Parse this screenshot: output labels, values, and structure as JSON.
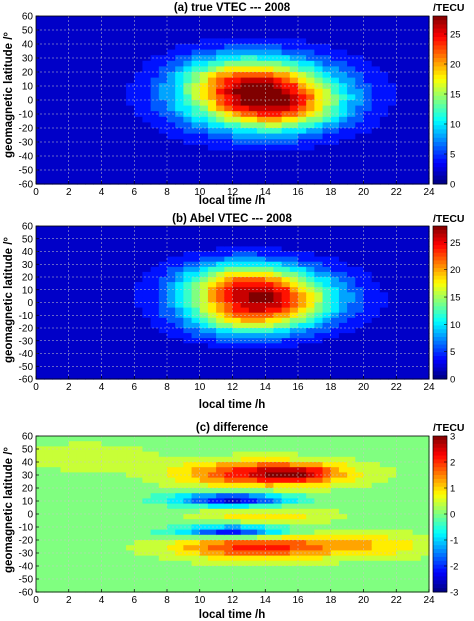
{
  "chart_data": [
    {
      "type": "heatmap",
      "title": "(a) true VTEC --- 2008",
      "xlabel": "local time /h",
      "ylabel": "geomagnetic latitude /°",
      "xlim": [
        0,
        24
      ],
      "ylim": [
        -60,
        60
      ],
      "xticks": [
        0,
        2,
        4,
        6,
        8,
        10,
        12,
        14,
        16,
        18,
        20,
        22,
        24
      ],
      "yticks": [
        -60,
        -50,
        -40,
        -30,
        -20,
        -10,
        0,
        10,
        20,
        30,
        40,
        50,
        60
      ],
      "colorbar": {
        "unit": "/TECU",
        "range": [
          0,
          28
        ],
        "ticks": [
          0,
          5,
          10,
          15,
          20,
          25
        ]
      },
      "colormap": "jet",
      "field": {
        "kind": "peak",
        "base": 1.5,
        "components": [
          {
            "amp": 25,
            "lt": 13.8,
            "lat": 3,
            "sig_lt": 3.4,
            "sig_lat": 17
          },
          {
            "amp": 5,
            "lt": 12,
            "lat": 18,
            "sig_lt": 2.5,
            "sig_lat": 12
          },
          {
            "amp": 4,
            "lt": 15.5,
            "lat": -8,
            "sig_lt": 2.2,
            "sig_lat": 10
          }
        ]
      }
    },
    {
      "type": "heatmap",
      "title": "(b) Abel VTEC --- 2008",
      "xlabel": "local time /h",
      "ylabel": "geomagnetic latitude /°",
      "xlim": [
        0,
        24
      ],
      "ylim": [
        -60,
        60
      ],
      "xticks": [
        0,
        2,
        4,
        6,
        8,
        10,
        12,
        14,
        16,
        18,
        20,
        22,
        24
      ],
      "yticks": [
        -60,
        -50,
        -40,
        -30,
        -20,
        -10,
        0,
        10,
        20,
        30,
        40,
        50,
        60
      ],
      "colorbar": {
        "unit": "/TECU",
        "range": [
          0,
          28
        ],
        "ticks": [
          0,
          5,
          10,
          15,
          20,
          25
        ]
      },
      "colormap": "jet",
      "field": {
        "kind": "peak",
        "base": 1.5,
        "components": [
          {
            "amp": 24,
            "lt": 13.8,
            "lat": 3,
            "sig_lt": 3.2,
            "sig_lat": 16
          },
          {
            "amp": 6,
            "lt": 12,
            "lat": 20,
            "sig_lt": 2.5,
            "sig_lat": 11
          },
          {
            "amp": 5,
            "lt": 12.5,
            "lat": -15,
            "sig_lt": 2.4,
            "sig_lat": 10
          }
        ]
      }
    },
    {
      "type": "heatmap",
      "title": "(c) difference",
      "xlabel": "local time /h",
      "ylabel": "geomagnetic latitude /°",
      "xlim": [
        0,
        24
      ],
      "ylim": [
        -60,
        60
      ],
      "xticks": [
        0,
        2,
        4,
        6,
        8,
        10,
        12,
        14,
        16,
        18,
        20,
        22,
        24
      ],
      "yticks": [
        -60,
        -50,
        -40,
        -30,
        -20,
        -10,
        0,
        10,
        20,
        30,
        40,
        50,
        60
      ],
      "colorbar": {
        "unit": "/TECU",
        "range": [
          -3,
          3
        ],
        "ticks": [
          -3,
          -2,
          -1,
          0,
          1,
          2,
          3
        ]
      },
      "colormap": "jet",
      "field": {
        "kind": "difference",
        "base": 0,
        "components": [
          {
            "amp": 2.4,
            "lt": 14,
            "lat": 31,
            "sig_lt": 3.6,
            "sig_lat": 7
          },
          {
            "amp": 0.9,
            "lt": 16,
            "lat": 31,
            "sig_lt": 1.5,
            "sig_lat": 4
          },
          {
            "amp": 2.2,
            "lt": 13.5,
            "lat": -25,
            "sig_lt": 3.6,
            "sig_lat": 7
          },
          {
            "amp": -2.6,
            "lt": 12,
            "lat": 11,
            "sig_lt": 2.4,
            "sig_lat": 3.5
          },
          {
            "amp": -2.6,
            "lt": 12,
            "lat": -14,
            "sig_lt": 2.4,
            "sig_lat": 3.5
          },
          {
            "amp": 0.9,
            "lt": 14,
            "lat": -1,
            "sig_lt": 3,
            "sig_lat": 4
          },
          {
            "amp": 0.8,
            "lt": 21,
            "lat": -24,
            "sig_lt": 2.5,
            "sig_lat": 7
          },
          {
            "amp": 0.5,
            "lt": 3,
            "lat": 44,
            "sig_lt": 3,
            "sig_lat": 8
          }
        ]
      }
    }
  ]
}
